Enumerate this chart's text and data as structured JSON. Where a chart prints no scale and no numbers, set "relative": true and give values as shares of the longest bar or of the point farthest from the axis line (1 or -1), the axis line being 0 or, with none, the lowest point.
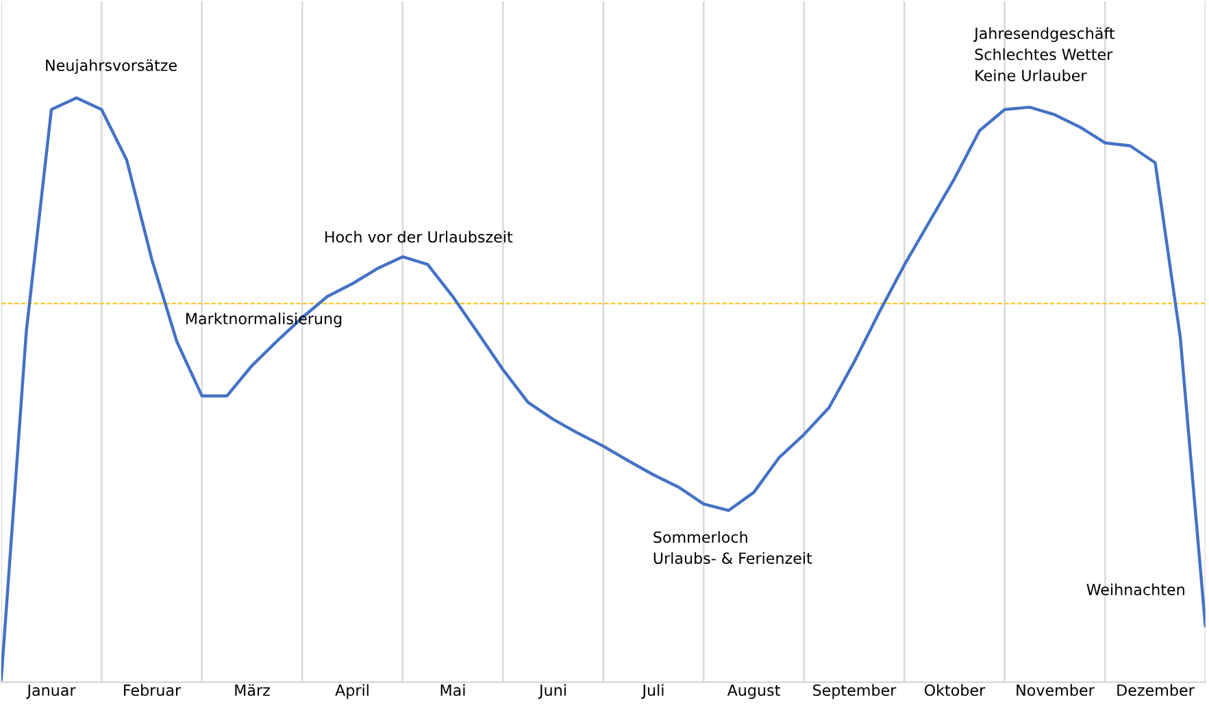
{
  "chart_data": {
    "type": "line",
    "relative": true,
    "categories": [
      null,
      null,
      "Januar",
      null,
      null,
      null,
      "Februar",
      null,
      null,
      null,
      "März",
      null,
      null,
      null,
      "April",
      null,
      null,
      null,
      "Mai",
      null,
      null,
      null,
      "Juni",
      null,
      null,
      null,
      "Juli",
      null,
      null,
      null,
      "August",
      null,
      null,
      null,
      "September",
      null,
      null,
      null,
      "Oktober",
      null,
      null,
      null,
      "November",
      null,
      null,
      null,
      "Dezember",
      null,
      null
    ],
    "series": [
      {
        "color": "#4472c4",
        "values": [
          0.004,
          0.6,
          0.98,
          1,
          0.98,
          0.894,
          0.724,
          0.583,
          0.49,
          0.49,
          0.542,
          0.584,
          0.624,
          0.66,
          0.682,
          0.708,
          0.728,
          0.715,
          0.66,
          0.598,
          0.535,
          0.479,
          0.45,
          0.426,
          0.404,
          0.379,
          0.355,
          0.334,
          0.305,
          0.294,
          0.325,
          0.384,
          0.424,
          0.47,
          0.548,
          0.633,
          0.714,
          0.788,
          0.862,
          0.944,
          0.98,
          0.984,
          0.971,
          0.95,
          0.923,
          0.918,
          0.889,
          0.59,
          0.096
        ]
      }
    ],
    "ref_lines": [
      {
        "axis": "y",
        "value": 0.648,
        "color": "#ffc000",
        "line_style": "dashed"
      }
    ],
    "annotations": [
      "Neujahrsvorsätze",
      "Marktnormalisierung",
      "Hoch vor der Urlaubszeit",
      "Sommerloch\nUrlaubs- & Ferienzeit",
      "Jahresendgeschäft\nSchlechtes Wetter\nKeine Urlauber",
      "Weihnachten"
    ],
    "grid": "x",
    "line_style": "solid",
    "marker": "none",
    "legend": false
  }
}
